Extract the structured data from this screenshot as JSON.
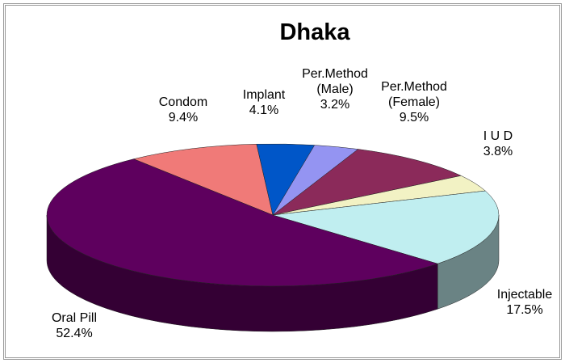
{
  "chart_data": {
    "type": "pie3d",
    "title": "Dhaka",
    "categories": [
      "Condom",
      "Implant",
      "Per.Method (Male)",
      "Per.Method (Female)",
      "I U D",
      "Injectable",
      "Oral Pill"
    ],
    "values": [
      9.4,
      4.1,
      3.2,
      9.5,
      3.8,
      17.5,
      52.4
    ],
    "value_labels": [
      "9.4%",
      "4.1%",
      "3.2%",
      "9.5%",
      "3.8%",
      "17.5%",
      "52.4%"
    ],
    "colors": [
      "#f07a78",
      "#0056c8",
      "#9494f2",
      "#8b2a5a",
      "#f2f2c4",
      "#c0eef0",
      "#5e005e"
    ]
  }
}
